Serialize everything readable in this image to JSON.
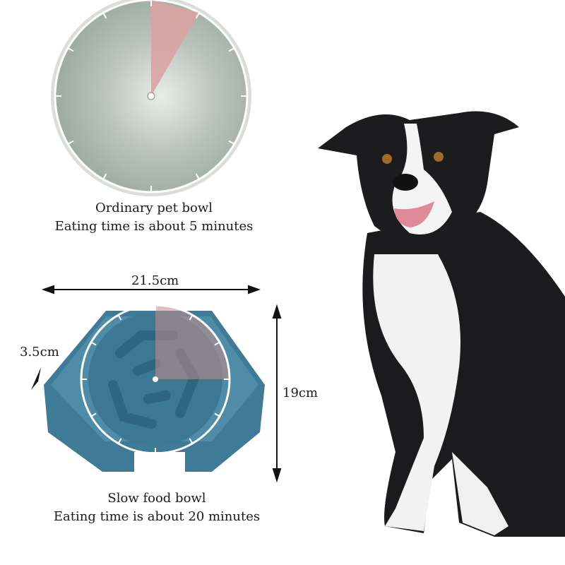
{
  "ordinary": {
    "title": "Ordinary pet bowl",
    "time": "Eating time is about 5 minutes"
  },
  "slow": {
    "title": "Slow food bowl",
    "time": "Eating time is about 20 minutes"
  },
  "dimensions": {
    "width": "21.5cm",
    "height": "19cm",
    "depth": "3.5cm"
  },
  "colors": {
    "bowl_grey": "#a9b5ad",
    "wedge_pink": "#d9a3a3",
    "slow_bowl_blue": "#3f7a96"
  }
}
